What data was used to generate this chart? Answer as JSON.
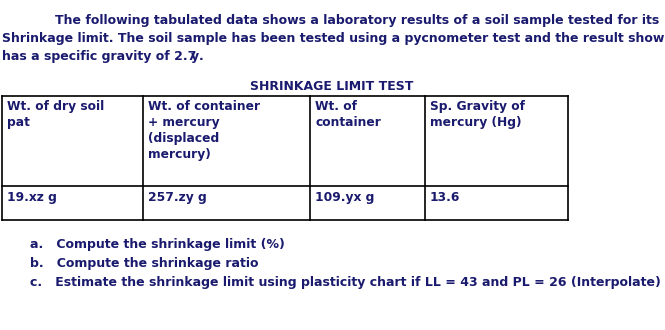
{
  "intro_line1": "The following tabulated data shows a laboratory results of a soil sample tested for its",
  "intro_line2": "Shrinkage limit. The soil sample has been tested using a pycnometer test and the result shows it",
  "intro_line3_pre": "has a specific gravity of 2.7",
  "intro_line3_bold": "y",
  "intro_line3_post": ".",
  "table_title": "SHRINKAGE LIMIT TEST",
  "col_headers_0": [
    "Wt. of dry soil",
    "pat"
  ],
  "col_headers_1": [
    "Wt. of container",
    "+ mercury",
    "(displaced",
    "mercury)"
  ],
  "col_headers_2": [
    "Wt. of",
    "container"
  ],
  "col_headers_3": [
    "Sp. Gravity of",
    "mercury (Hg)"
  ],
  "col_data": [
    "19.xz g",
    "257.zy g",
    "109.yx g",
    "13.6"
  ],
  "qa": "a.   Compute the shrinkage limit (%)",
  "qb": "b.   Compute the shrinkage ratio",
  "qc": "c.   Estimate the shrinkage limit using plasticity chart if LL = 43 and PL = 26 (Interpolate)",
  "bg_color": "#ffffff",
  "text_color": "#1a1a6e",
  "font_size": 9.0,
  "table_font_size": 8.8
}
